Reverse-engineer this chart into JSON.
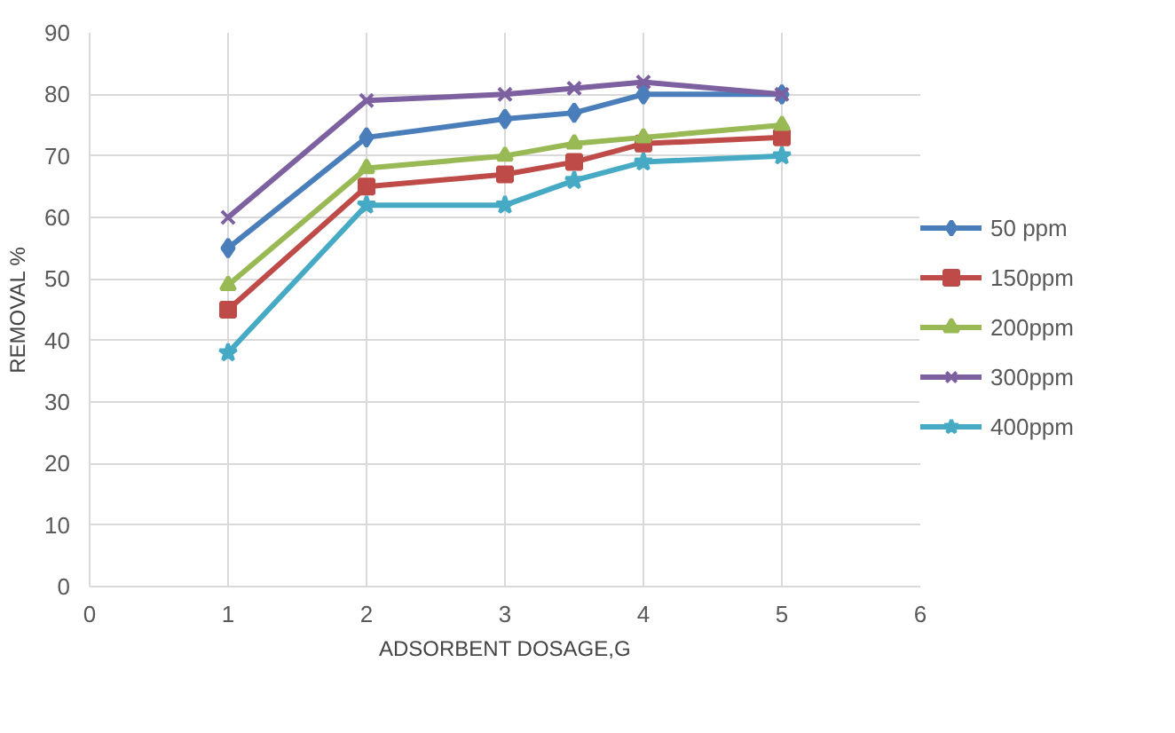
{
  "chart_data": {
    "type": "line",
    "xlabel": "ADSORBENT DOSAGE,G",
    "ylabel": "REMOVAL %",
    "xlim": [
      0,
      6
    ],
    "xticks": [
      0,
      1,
      2,
      3,
      4,
      5,
      6
    ],
    "ylim": [
      0,
      90
    ],
    "yticks": [
      0,
      10,
      20,
      30,
      40,
      50,
      60,
      70,
      80,
      90
    ],
    "grid": true,
    "legend": "right",
    "line_style": "solid",
    "series": [
      {
        "name": "50 ppm",
        "color": "#4a7ebb",
        "marker": "diamond",
        "x": [
          1,
          2,
          3,
          3.5,
          4,
          5
        ],
        "values": [
          55,
          73,
          76,
          77,
          80,
          80
        ]
      },
      {
        "name": "150ppm",
        "color": "#be4b48",
        "marker": "square",
        "x": [
          1,
          2,
          3,
          3.5,
          4,
          5
        ],
        "values": [
          45,
          65,
          67,
          69,
          72,
          73
        ]
      },
      {
        "name": "200ppm",
        "color": "#98b954",
        "marker": "triangle",
        "x": [
          1,
          2,
          3,
          3.5,
          4,
          5
        ],
        "values": [
          49,
          68,
          70,
          72,
          73,
          75
        ]
      },
      {
        "name": "300ppm",
        "color": "#7d60a0",
        "marker": "cross",
        "x": [
          1,
          2,
          3,
          3.5,
          4,
          5
        ],
        "values": [
          60,
          79,
          80,
          81,
          82,
          80
        ]
      },
      {
        "name": "400ppm",
        "color": "#46aac5",
        "marker": "star",
        "x": [
          1,
          2,
          3,
          3.5,
          4,
          5
        ],
        "values": [
          38,
          62,
          62,
          66,
          69,
          70
        ]
      }
    ]
  }
}
